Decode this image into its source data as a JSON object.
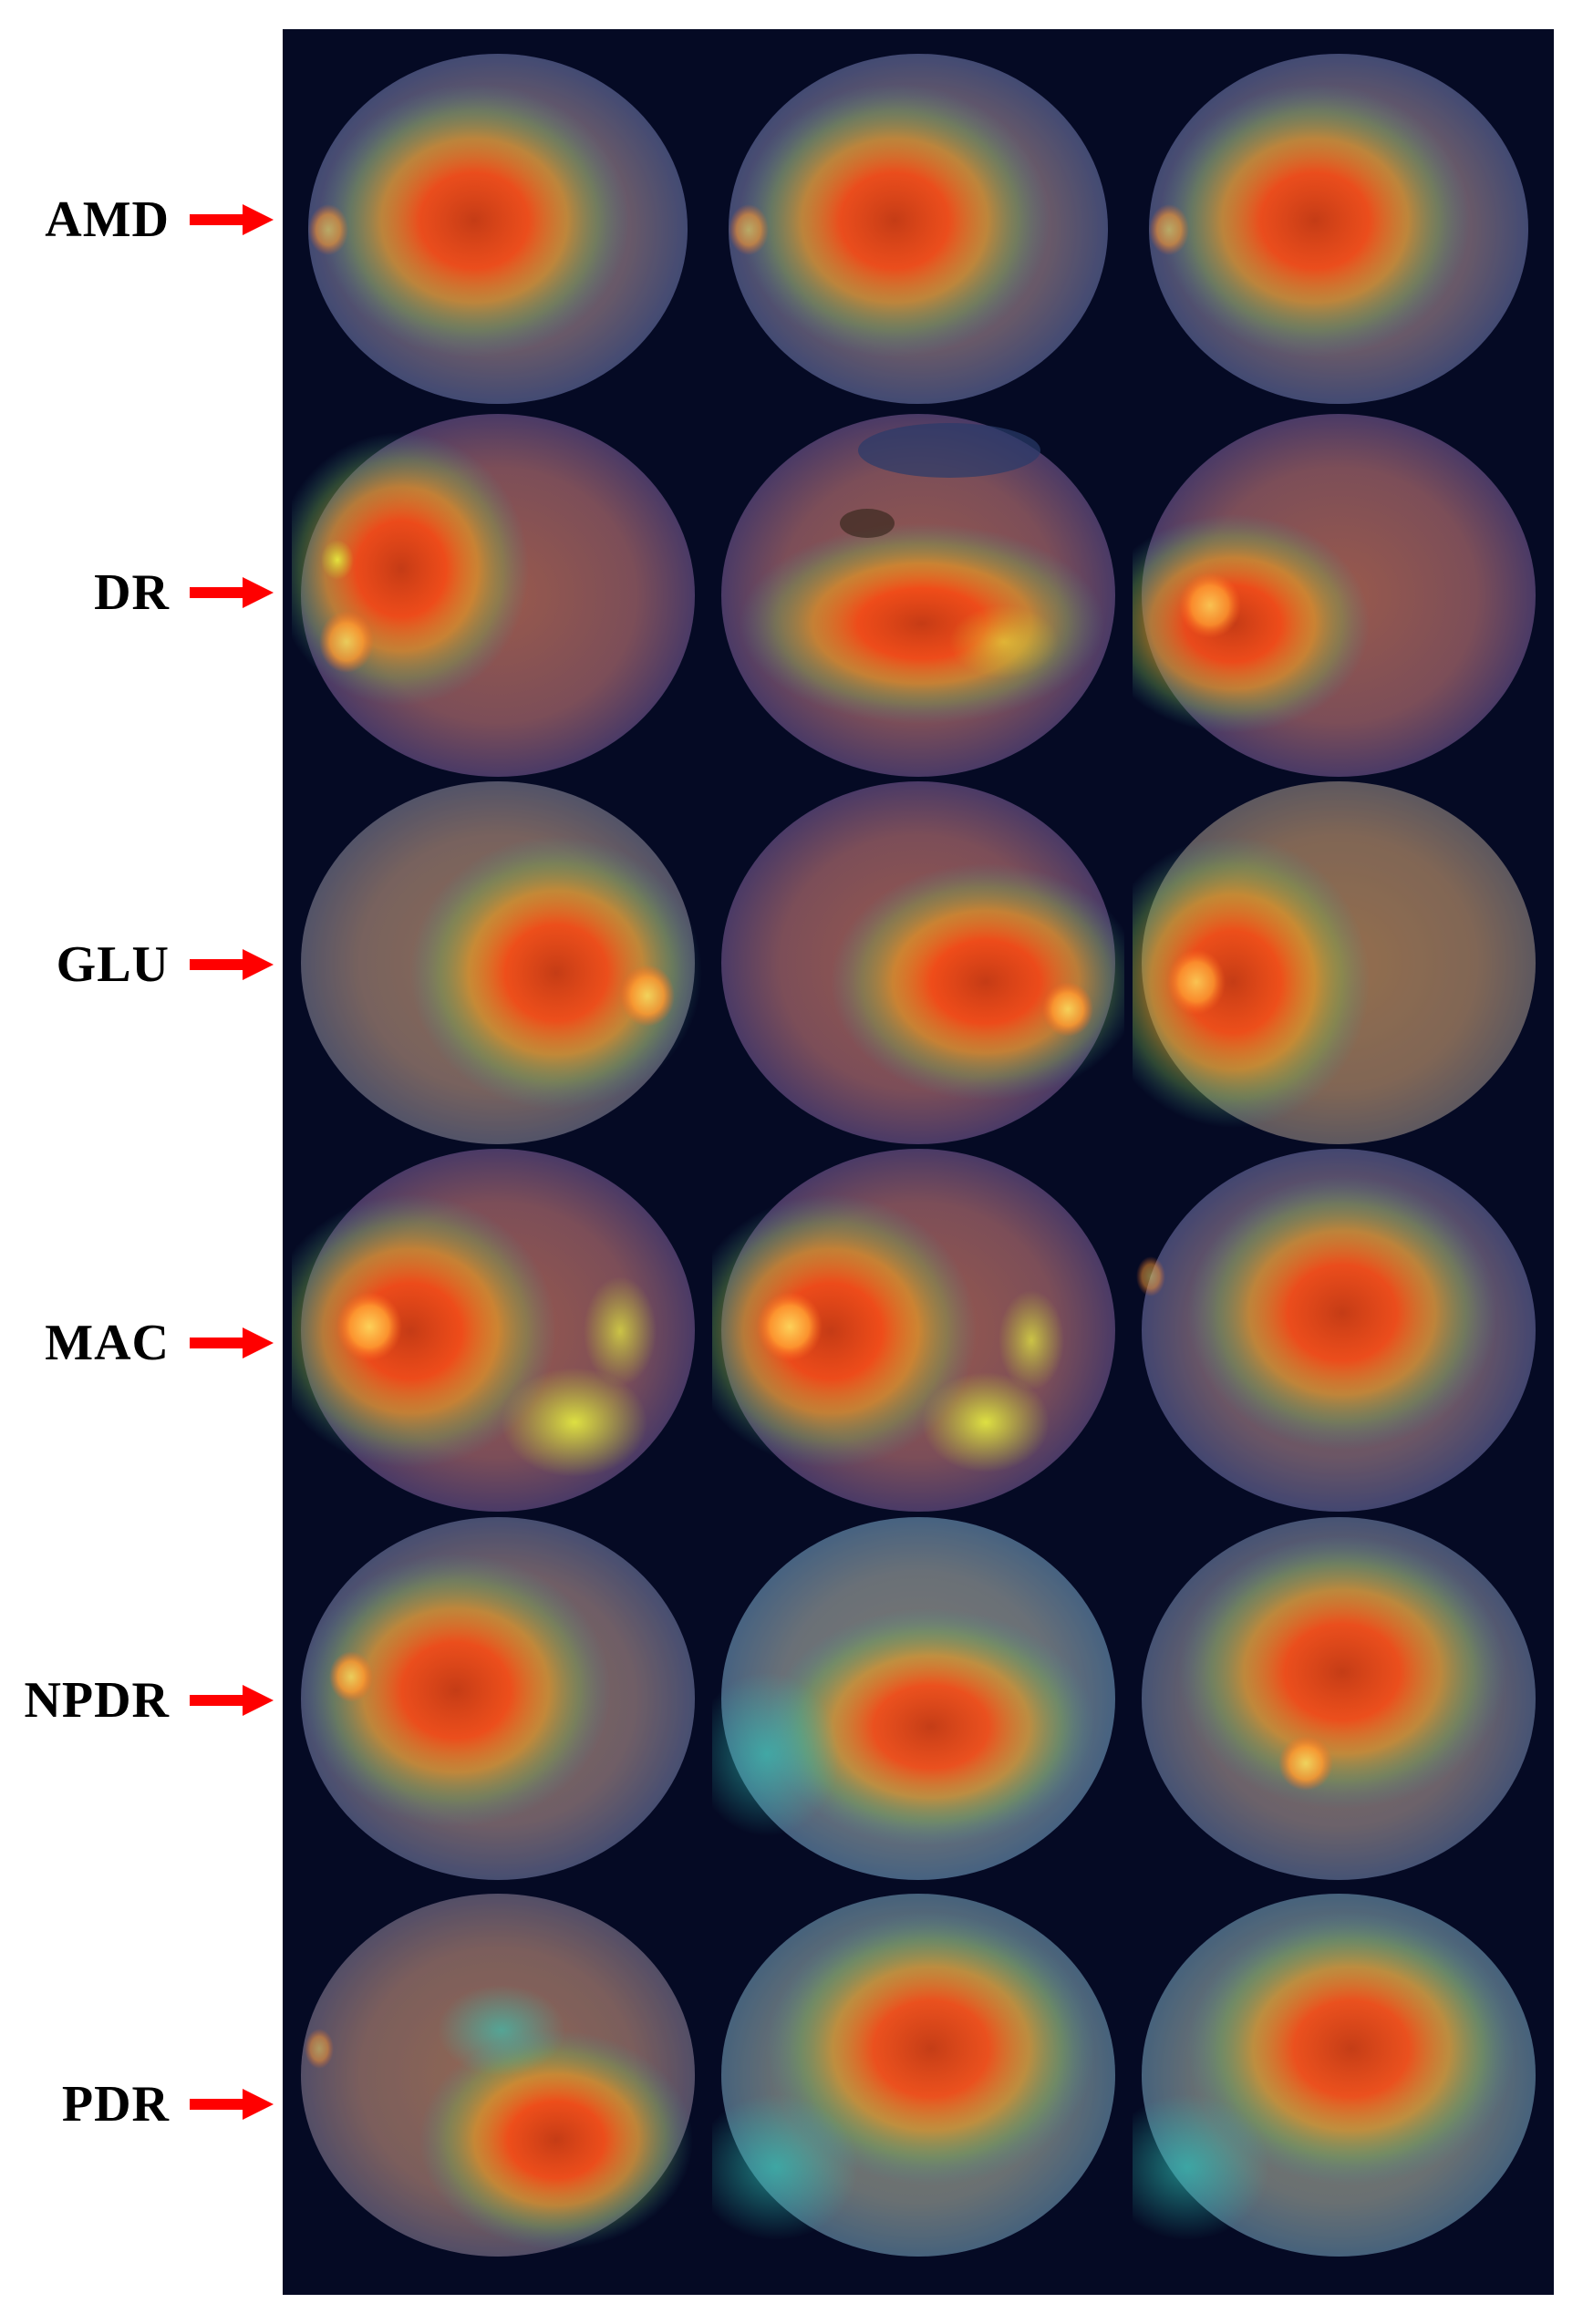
{
  "rows": [
    {
      "label": "AMD"
    },
    {
      "label": "DR"
    },
    {
      "label": "GLU"
    },
    {
      "label": "MAC"
    },
    {
      "label": "NPDR"
    },
    {
      "label": "PDR"
    }
  ],
  "colors": {
    "panel_background": "#050a24",
    "arrow": "#ff0000",
    "label": "#000000"
  }
}
